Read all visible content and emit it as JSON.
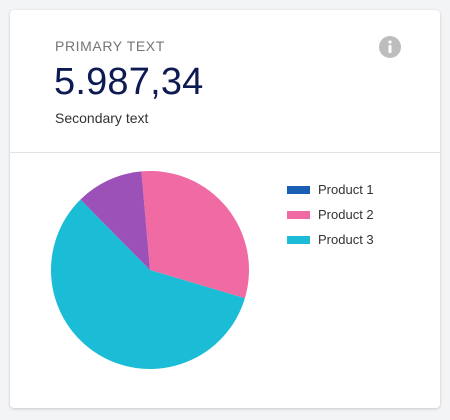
{
  "card": {
    "primary_text": "PRIMARY TEXT",
    "value": "5.987,34",
    "secondary_text": "Secondary text",
    "info_icon": "info-icon"
  },
  "colors": {
    "value_text": "#0e1a52",
    "info_icon": "#bdbdbd"
  },
  "chart_data": {
    "type": "pie",
    "title": "",
    "categories": [
      "Product 1",
      "Product 2",
      "Product 3",
      ""
    ],
    "values": [
      0,
      31,
      58,
      11
    ],
    "colors": [
      "#1a5fb4",
      "#f06aa3",
      "#1bbcd5",
      "#9b51b7"
    ],
    "legend": {
      "position": "right",
      "entries": [
        {
          "label": "Product 1",
          "color": "#1a5fb4"
        },
        {
          "label": "Product 2",
          "color": "#f06aa3"
        },
        {
          "label": "Product 3",
          "color": "#1bbcd5"
        }
      ]
    }
  }
}
